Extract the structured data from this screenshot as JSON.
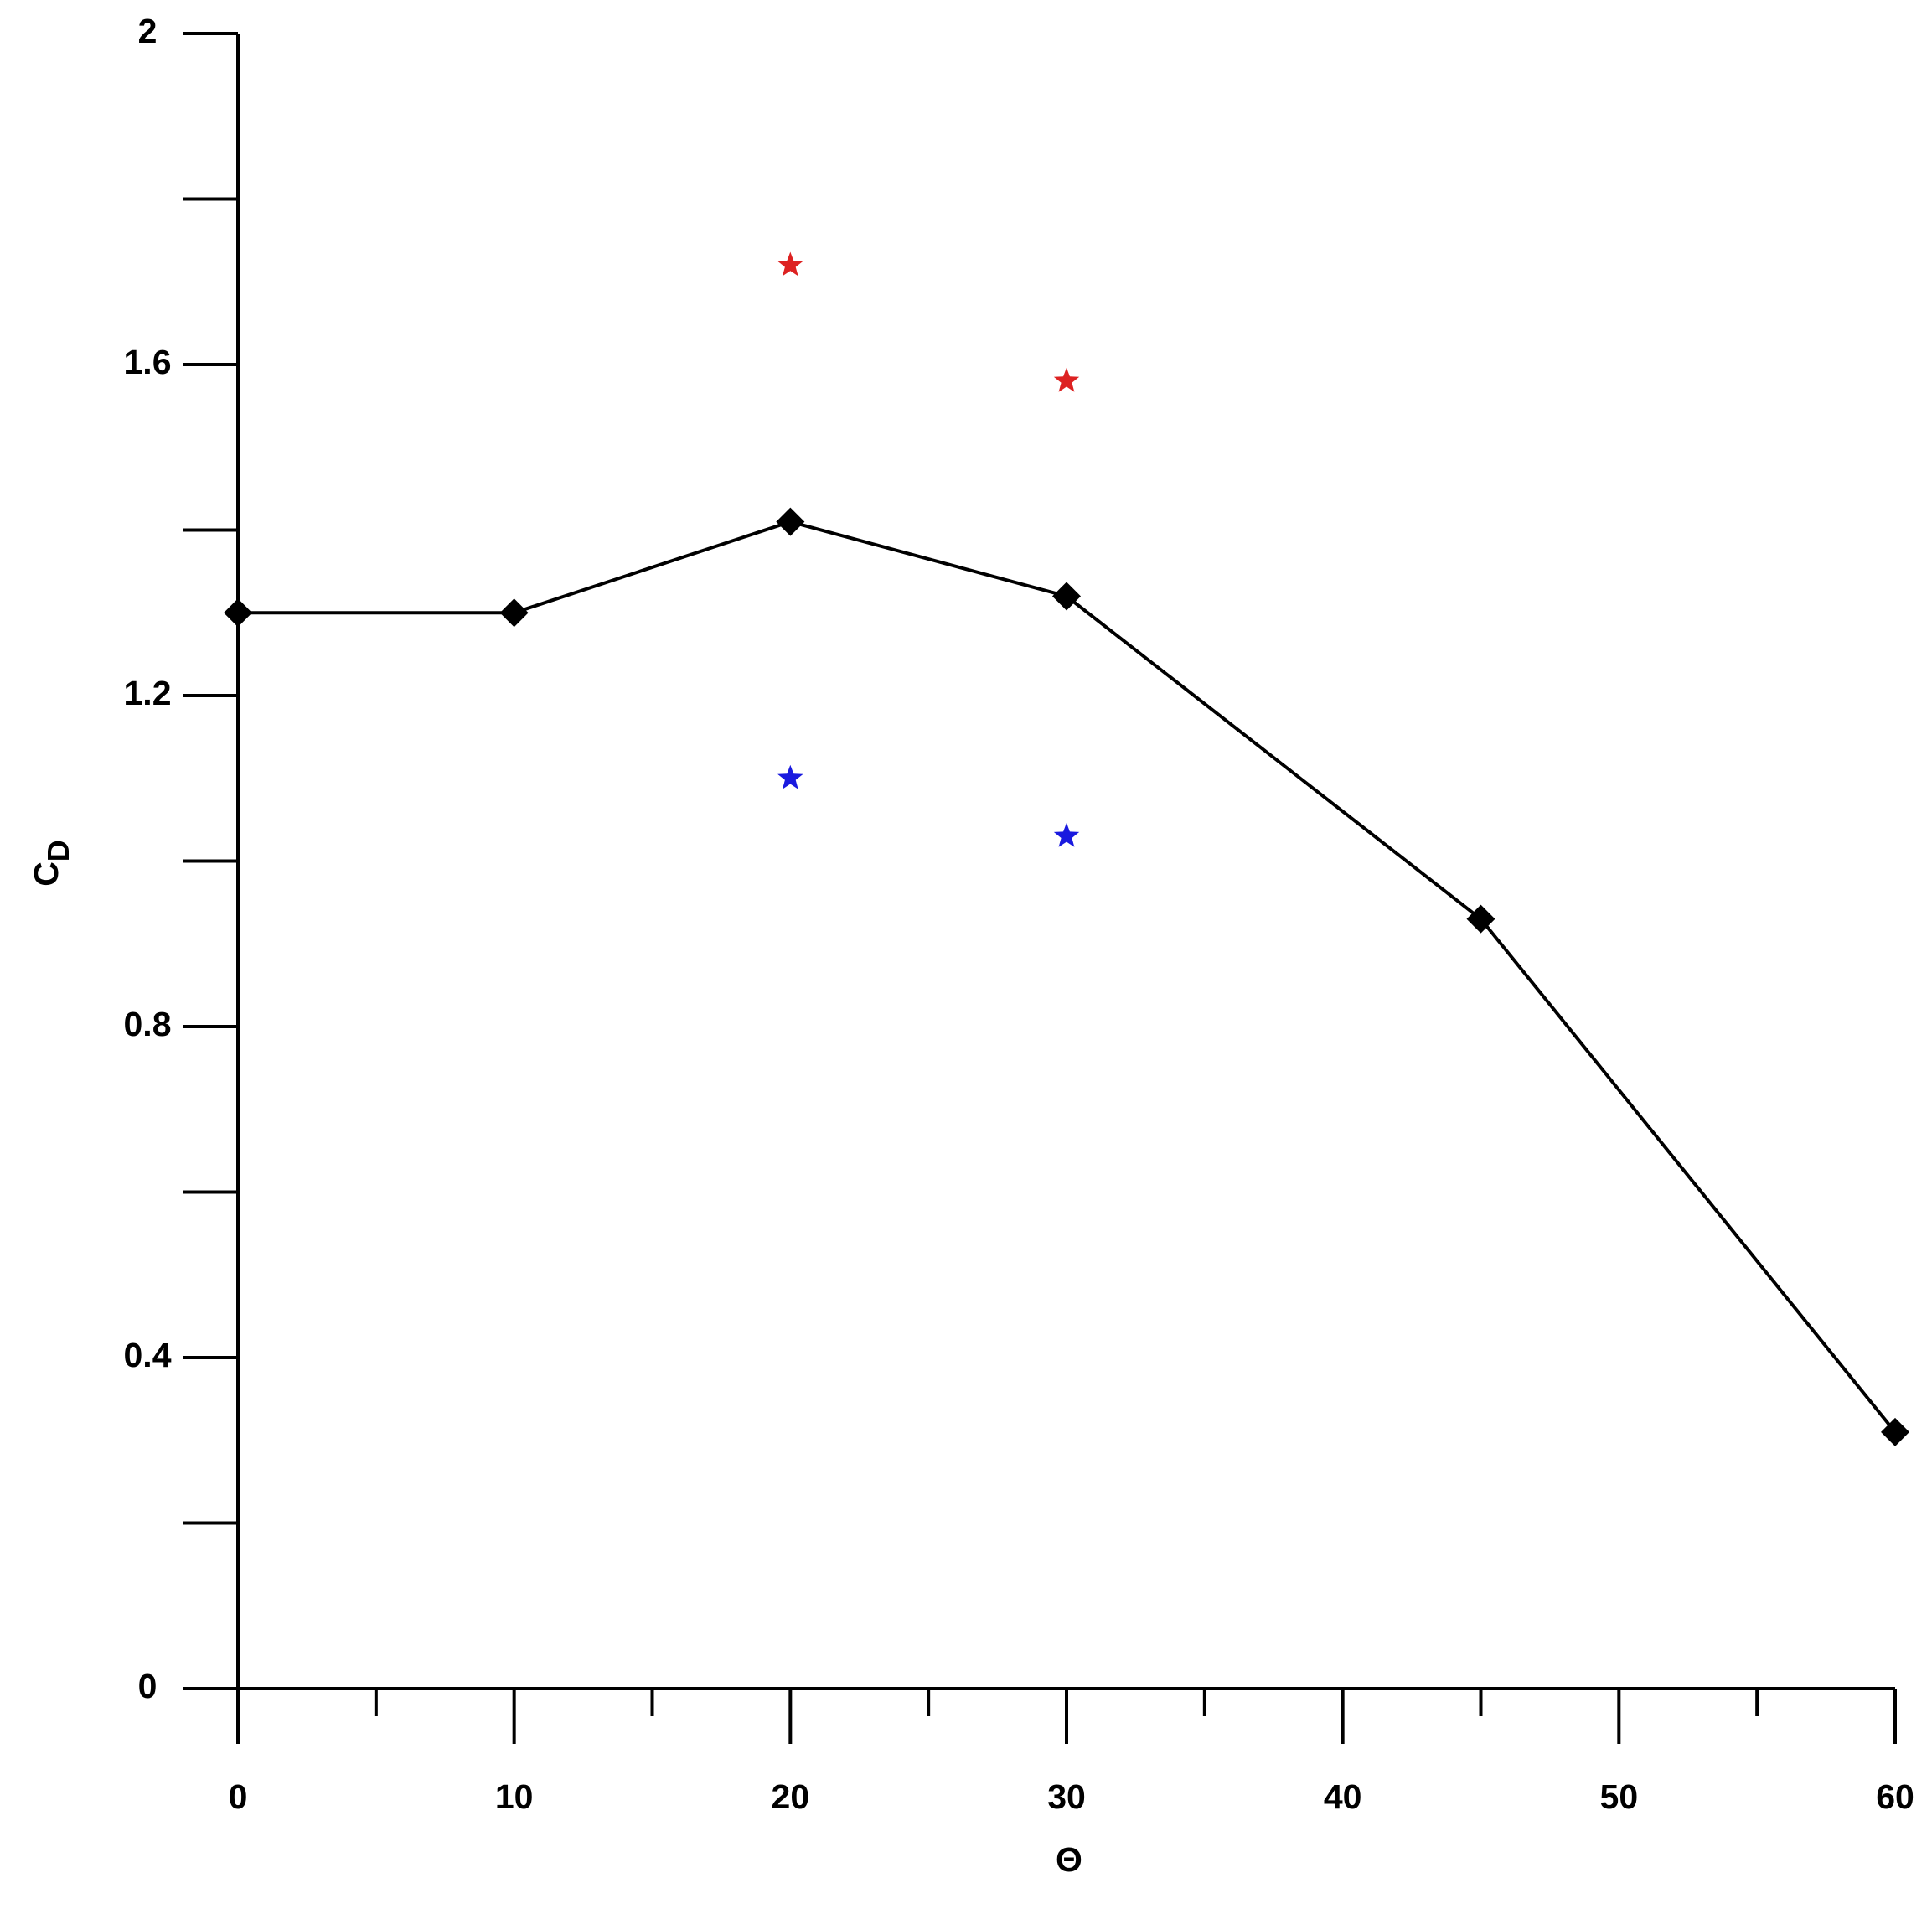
{
  "chart_data": {
    "type": "line",
    "xlabel": "Θ",
    "ylabel": {
      "text": "C",
      "subscript": "D"
    },
    "x": [
      0,
      10,
      20,
      30,
      45,
      60
    ],
    "series": [
      {
        "color": "#000000",
        "marker": "diamond",
        "line": true,
        "values": [
          1.3,
          1.3,
          1.41,
          1.32,
          0.93,
          0.31
        ]
      },
      {
        "color": "#dd2222",
        "marker": "star",
        "line": false,
        "x": [
          20,
          30
        ],
        "values": [
          1.72,
          1.58
        ]
      },
      {
        "color": "#1a1adf",
        "marker": "star",
        "line": false,
        "x": [
          20,
          30
        ],
        "values": [
          1.1,
          1.03
        ]
      }
    ],
    "xlim": [
      0,
      60
    ],
    "ylim": [
      0,
      2
    ],
    "xticks": [
      0,
      10,
      20,
      30,
      40,
      50,
      60
    ],
    "xminorticks": [
      5,
      15,
      25,
      35,
      45,
      55
    ],
    "yticks": [
      0,
      0.4,
      0.8,
      1.2,
      1.6,
      2
    ],
    "yminorticks": [
      0.2,
      0.6,
      1.0,
      1.4,
      1.8
    ],
    "grid": false
  }
}
